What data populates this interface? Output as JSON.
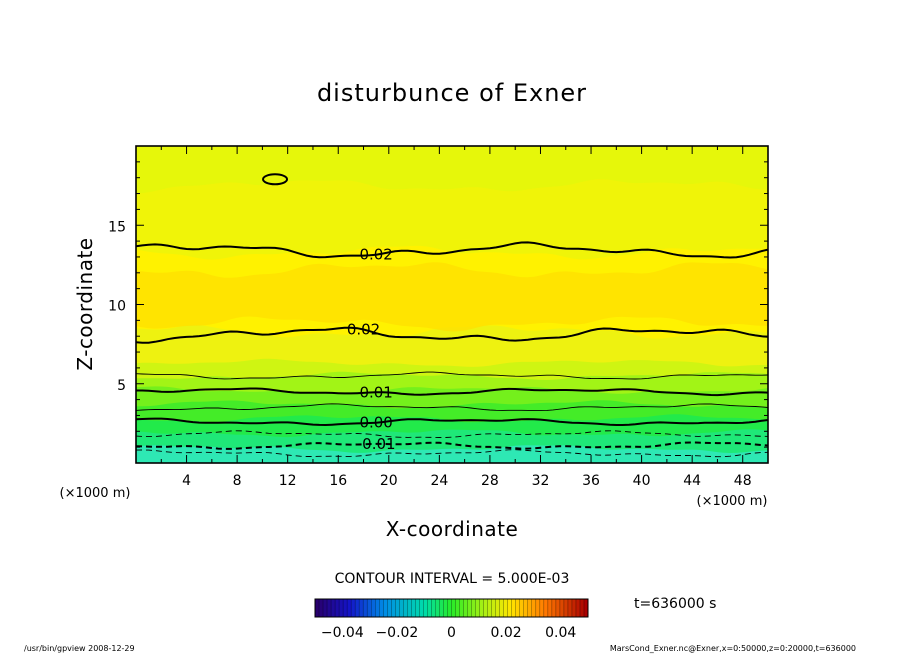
{
  "chart_data": {
    "type": "contour",
    "title": "disturbunce of Exner",
    "xlabel": "X-coordinate",
    "ylabel": "Z-coordinate",
    "x_unit": "(×1000 m)",
    "y_unit": "(×1000 m)",
    "xlim": [
      0,
      50
    ],
    "ylim": [
      0,
      20
    ],
    "x_ticks": [
      4,
      8,
      12,
      16,
      20,
      24,
      28,
      32,
      36,
      40,
      44,
      48
    ],
    "y_ticks": [
      5,
      10,
      15
    ],
    "contour_interval_text": "CONTOUR INTERVAL = 5.000E-03",
    "time_text": "t=636000 s",
    "colorbar": {
      "min": -0.05,
      "max": 0.05,
      "tick_values": [
        -0.04,
        -0.02,
        0,
        0.02,
        0.04
      ],
      "tick_labels": [
        "−0.04",
        "−0.02",
        "0",
        "0.02",
        "0.04"
      ]
    },
    "fill_levels": [
      {
        "z_top": 0.9,
        "value": -0.015,
        "color": "#2ee8b4"
      },
      {
        "z_top": 1.9,
        "value": -0.01,
        "color": "#1fe878"
      },
      {
        "z_top": 2.8,
        "value": -0.005,
        "color": "#22ea4a"
      },
      {
        "z_top": 3.7,
        "value": 0.0,
        "color": "#44ec28"
      },
      {
        "z_top": 4.6,
        "value": 0.005,
        "color": "#74f01c"
      },
      {
        "z_top": 5.5,
        "value": 0.01,
        "color": "#a2f416"
      },
      {
        "z_top": 6.3,
        "value": 0.015,
        "color": "#cff512"
      },
      {
        "z_top": 8.3,
        "value": 0.02,
        "color": "#eef210"
      },
      {
        "z_top": 13.3,
        "value": 0.025,
        "color": "#fff200"
      },
      {
        "z_top": 17.5,
        "value": 0.02,
        "color": "#f0f408"
      },
      {
        "z_top": 20.0,
        "value": 0.015,
        "color": "#e6f70a"
      }
    ],
    "contours": [
      {
        "value": -0.015,
        "z": 0.6,
        "dashed": true,
        "bold": false,
        "label": ""
      },
      {
        "value": -0.01,
        "z": 1.1,
        "dashed": true,
        "bold": true,
        "label": "-0.01"
      },
      {
        "value": -0.005,
        "z": 1.8,
        "dashed": true,
        "bold": false,
        "label": ""
      },
      {
        "value": 0.0,
        "z": 2.6,
        "dashed": false,
        "bold": true,
        "label": "0.00"
      },
      {
        "value": 0.005,
        "z": 3.5,
        "dashed": false,
        "bold": false,
        "label": ""
      },
      {
        "value": 0.01,
        "z": 4.5,
        "dashed": false,
        "bold": true,
        "label": "0.01"
      },
      {
        "value": 0.015,
        "z": 5.5,
        "dashed": false,
        "bold": false,
        "label": ""
      },
      {
        "value": 0.02,
        "z": 8.1,
        "dashed": false,
        "bold": true,
        "label": "0.02"
      },
      {
        "value": 0.02,
        "z": 13.4,
        "dashed": false,
        "bold": true,
        "label": "0.02"
      }
    ],
    "maximum_region": {
      "z_range": [
        8.8,
        12.2
      ],
      "color": "#ffdf00"
    }
  },
  "footer": {
    "left": "/usr/bin/gpview   2008-12-29",
    "right": "MarsCond_Exner.nc@Exner,x=0:50000,z=0:20000,t=636000"
  }
}
